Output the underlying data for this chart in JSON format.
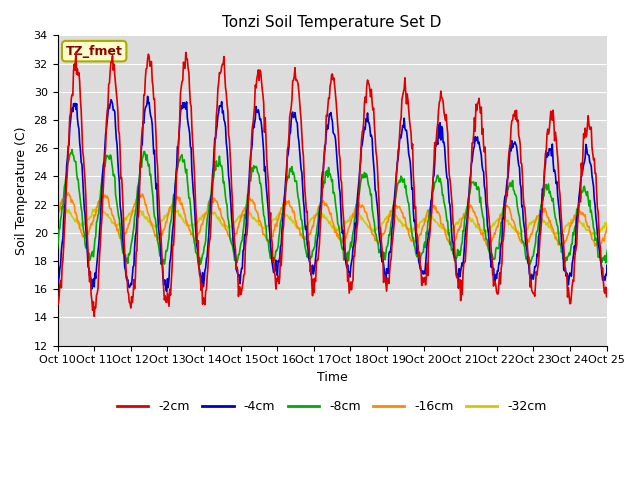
{
  "title": "Tonzi Soil Temperature Set D",
  "xlabel": "Time",
  "ylabel": "Soil Temperature (C)",
  "ylim": [
    12,
    34
  ],
  "yticks": [
    12,
    14,
    16,
    18,
    20,
    22,
    24,
    26,
    28,
    30,
    32,
    34
  ],
  "xtick_labels": [
    "Oct 10",
    "Oct 11",
    "Oct 12",
    "Oct 13",
    "Oct 14",
    "Oct 15",
    "Oct 16",
    "Oct 17",
    "Oct 18",
    "Oct 19",
    "Oct 20",
    "Oct 21",
    "Oct 22",
    "Oct 23",
    "Oct 24",
    "Oct 25"
  ],
  "annotation_text": "TZ_fmet",
  "annotation_color": "#8B0000",
  "annotation_bg": "#FFFFCC",
  "annotation_border": "#AAAA00",
  "colors": {
    "-2cm": "#DD0000",
    "-4cm": "#0000CC",
    "-8cm": "#00AA00",
    "-16cm": "#FF8800",
    "-32cm": "#CCCC00"
  },
  "line_width": 1.2,
  "bg_color": "#DCDCDC",
  "grid_color": "#FFFFFF",
  "n_days": 16,
  "points_per_day": 48
}
